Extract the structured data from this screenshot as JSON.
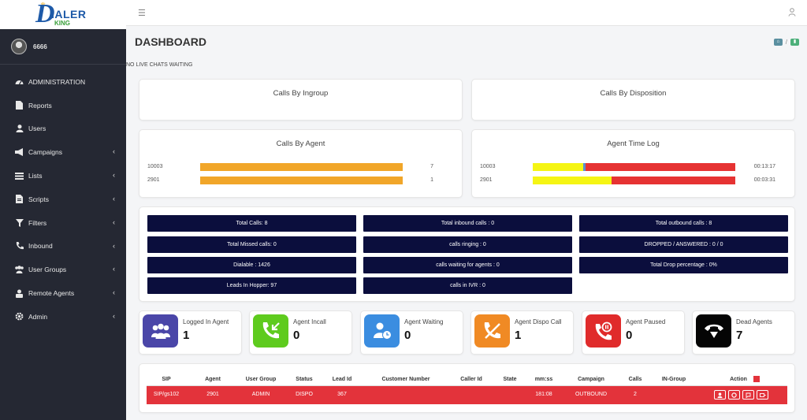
{
  "brand": {
    "logo_letter": "D",
    "logo_text": "IALER",
    "logo_sub": "KING"
  },
  "user": {
    "name": "6666"
  },
  "sidebar": {
    "items": [
      {
        "label": "ADMINISTRATION",
        "icon": "dashboard-icon"
      },
      {
        "label": "Reports",
        "icon": "file-icon"
      },
      {
        "label": "Users",
        "icon": "user-icon"
      },
      {
        "label": "Campaigns",
        "icon": "megaphone-icon"
      },
      {
        "label": "Lists",
        "icon": "list-icon"
      },
      {
        "label": "Scripts",
        "icon": "script-icon"
      },
      {
        "label": "Filters",
        "icon": "filter-icon"
      },
      {
        "label": "Inbound",
        "icon": "phone-icon"
      },
      {
        "label": "User Groups",
        "icon": "users-icon"
      },
      {
        "label": "Remote Agents",
        "icon": "remote-agent-icon"
      },
      {
        "label": "Admin",
        "icon": "gear-icon"
      }
    ]
  },
  "header": {
    "title": "DASHBOARD",
    "crumb_sep": "/",
    "crumb_colors": [
      "#5a8fa0",
      "#4caf7a"
    ]
  },
  "notice": {
    "text": "NO LIVE CHATS WAITING"
  },
  "cards": {
    "ingroup": {
      "title": "Calls By Ingroup"
    },
    "disposition": {
      "title": "Calls By Disposition"
    },
    "agent": {
      "title": "Calls By Agent",
      "rows": [
        {
          "label": "10003",
          "value": "7"
        },
        {
          "label": "2901",
          "value": "1"
        }
      ]
    },
    "timelog": {
      "title": "Agent Time Log",
      "rows": [
        {
          "label": "10003",
          "value": "00:13:17",
          "yellow_fraction": 0.25,
          "blue_fraction": 0.01
        },
        {
          "label": "2901",
          "value": "00:03:31",
          "yellow_fraction": 0.39,
          "blue_fraction": 0
        }
      ]
    }
  },
  "stats": [
    "Total Calls: 8",
    "Total inbound calls : 0",
    "Total outbound calls : 8",
    "Total Missed calls: 0",
    "calls ringing : 0",
    "DROPPED / ANSWERED : 0 / 0",
    "Dialable : 1426",
    "calls waiting for agents : 0",
    "Total Drop percentage : 0%",
    "Leads In Hopper: 97",
    "calls in IVR : 0"
  ],
  "status_cards": [
    {
      "label": "Logged In Agent",
      "value": "1",
      "color": "#4a46a8",
      "icon": "agents-group-icon"
    },
    {
      "label": "Agent Incall",
      "value": "0",
      "color": "#5ecb1e",
      "icon": "incoming-call-icon"
    },
    {
      "label": "Agent Waiting",
      "value": "0",
      "color": "#3b8de0",
      "icon": "user-clock-icon"
    },
    {
      "label": "Agent Dispo Call",
      "value": "1",
      "color": "#f08a24",
      "icon": "hangup-phone-icon"
    },
    {
      "label": "Agent Paused",
      "value": "0",
      "color": "#e02b2b",
      "icon": "paused-call-icon"
    },
    {
      "label": "Dead Agents",
      "value": "7",
      "color": "#050505",
      "icon": "dead-phone-icon"
    }
  ],
  "table": {
    "headers": [
      "SIP",
      "Agent",
      "User Group",
      "Status",
      "Lead Id",
      "Customer Number",
      "Caller Id",
      "State",
      "mm:ss",
      "Campaign",
      "Calls",
      "IN-Group",
      "Action"
    ],
    "row": [
      "SIP/gs102",
      "2901",
      "ADMIN",
      "DISPO",
      "367",
      "",
      "",
      "",
      "181:08",
      "OUTBOUND",
      "2",
      ""
    ],
    "row_color": "#e3333b",
    "actions": [
      "listen-icon",
      "record-icon",
      "whisper-icon",
      "hangup-icon"
    ]
  }
}
